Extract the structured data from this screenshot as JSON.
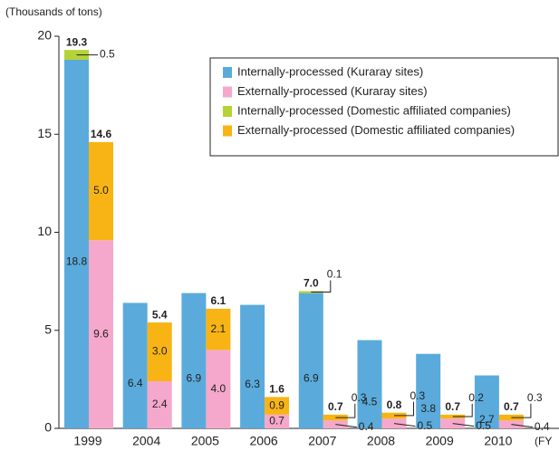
{
  "chart_data": {
    "type": "grouped-stacked-bar",
    "y_label": "(Thousands of tons)",
    "x_label": "(FY",
    "categories": [
      "1999",
      "2004",
      "2005",
      "2006",
      "2007",
      "2008",
      "2009",
      "2010"
    ],
    "ylim": [
      0,
      20
    ],
    "yticks": [
      0,
      5,
      10,
      15,
      20
    ],
    "series": [
      {
        "name": "Internally-processed (Kuraray sites)",
        "color": "#5aabdc",
        "stack": 0,
        "values": [
          18.8,
          6.4,
          6.9,
          6.3,
          6.9,
          4.5,
          3.8,
          2.7
        ],
        "value_labels": [
          "18.8",
          "6.4",
          "6.9",
          "6.3",
          "6.9",
          "4.5",
          "3.8",
          "2.7"
        ]
      },
      {
        "name": "Externally-processed (Kuraray sites)",
        "color": "#f5a8cb",
        "stack": 1,
        "values": [
          9.6,
          2.4,
          4.0,
          0.7,
          0.4,
          0.5,
          0.5,
          0.4
        ],
        "value_labels": [
          "9.6",
          "2.4",
          "4.0",
          "0.7",
          "0.4",
          "0.5",
          "0.5",
          "0.4"
        ]
      },
      {
        "name": "Internally-processed (Domestic affiliated companies)",
        "color": "#b5d334",
        "stack": 0,
        "values": [
          0.5,
          null,
          null,
          null,
          0.1,
          null,
          null,
          null
        ],
        "value_labels": [
          "0.5",
          null,
          null,
          null,
          "0.1",
          null,
          null,
          null
        ]
      },
      {
        "name": "Externally-processed (Domestic affiliated companies)",
        "color": "#f8b414",
        "stack": 1,
        "values": [
          5.0,
          3.0,
          2.1,
          0.9,
          0.3,
          0.3,
          0.2,
          0.3
        ],
        "value_labels": [
          "5.0",
          "3.0",
          "2.1",
          "0.9",
          "0.3",
          "0.3",
          "0.2",
          "0.3"
        ]
      }
    ],
    "stack_totals": [
      {
        "values": [
          19.3,
          null,
          null,
          null,
          7.0,
          null,
          null,
          null
        ],
        "labels": [
          "19.3",
          null,
          null,
          null,
          "7.0",
          null,
          null,
          null
        ]
      },
      {
        "values": [
          14.6,
          5.4,
          6.1,
          1.6,
          0.7,
          0.8,
          0.7,
          0.7
        ],
        "labels": [
          "14.6",
          "5.4",
          "6.1",
          "1.6",
          "0.7",
          "0.8",
          "0.7",
          "0.7"
        ]
      }
    ],
    "legend": "upper right"
  }
}
